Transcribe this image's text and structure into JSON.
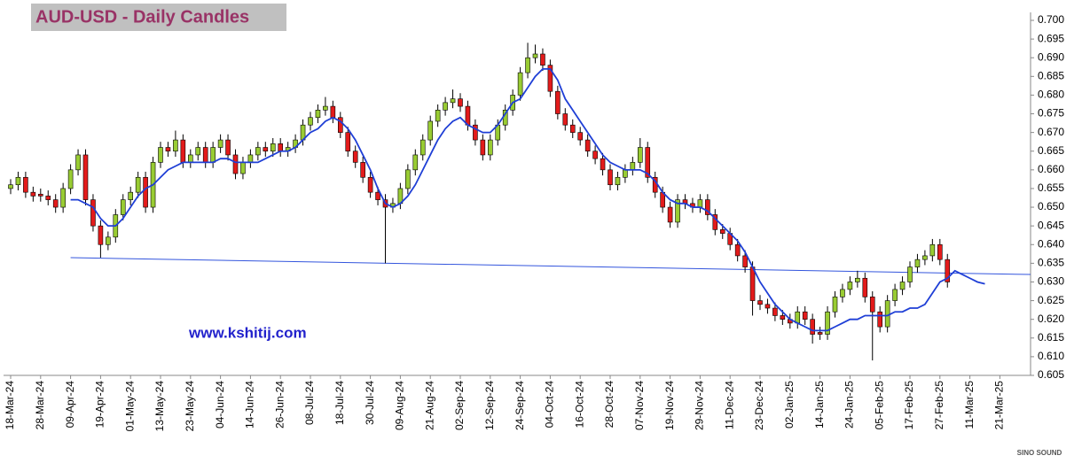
{
  "chart_data": {
    "type": "candlestick",
    "title": "AUD-USD - Daily Candles",
    "watermark": "www.kshitij.com",
    "logo": "SINO SOUND",
    "categories": [
      "18-Mar-24",
      null,
      null,
      null,
      "28-Mar-24",
      null,
      null,
      null,
      "09-Apr-24",
      null,
      null,
      null,
      "19-Apr-24",
      null,
      null,
      null,
      "01-May-24",
      null,
      null,
      null,
      "13-May-24",
      null,
      null,
      null,
      "23-May-24",
      null,
      null,
      null,
      "04-Jun-24",
      null,
      null,
      null,
      "14-Jun-24",
      null,
      null,
      null,
      "26-Jun-24",
      null,
      null,
      null,
      "08-Jul-24",
      null,
      null,
      null,
      "18-Jul-24",
      null,
      null,
      null,
      "30-Jul-24",
      null,
      null,
      null,
      "09-Aug-24",
      null,
      null,
      null,
      "21-Aug-24",
      null,
      null,
      null,
      "02-Sep-24",
      null,
      null,
      null,
      "12-Sep-24",
      null,
      null,
      null,
      "24-Sep-24",
      null,
      null,
      null,
      "04-Oct-24",
      null,
      null,
      null,
      "16-Oct-24",
      null,
      null,
      null,
      "28-Oct-24",
      null,
      null,
      null,
      "07-Nov-24",
      null,
      null,
      null,
      "19-Nov-24",
      null,
      null,
      null,
      "29-Nov-24",
      null,
      null,
      null,
      "11-Dec-24",
      null,
      null,
      null,
      "23-Dec-24",
      null,
      null,
      null,
      "02-Jan-25",
      null,
      null,
      null,
      "14-Jan-25",
      null,
      null,
      null,
      "24-Jan-25",
      null,
      null,
      null,
      "05-Feb-25",
      null,
      null,
      null,
      "17-Feb-25",
      null,
      null,
      null,
      "27-Feb-25",
      null,
      null,
      null,
      "11-Mar-25",
      null,
      null,
      null,
      "21-Mar-25",
      null,
      null,
      null
    ],
    "open": [
      0.655,
      0.656,
      0.658,
      0.654,
      0.6535,
      0.653,
      0.652,
      0.65,
      0.655,
      0.66,
      0.664,
      0.652,
      0.645,
      0.64,
      0.642,
      0.648,
      0.652,
      0.654,
      0.658,
      0.65,
      0.662,
      0.666,
      0.665,
      0.668,
      0.662,
      0.664,
      0.666,
      0.662,
      0.666,
      0.668,
      0.664,
      0.659,
      0.662,
      0.664,
      0.666,
      0.665,
      0.667,
      0.665,
      0.666,
      0.668,
      0.672,
      0.674,
      0.676,
      0.677,
      0.674,
      0.67,
      0.665,
      0.662,
      0.658,
      0.654,
      0.652,
      0.65,
      0.651,
      0.655,
      0.66,
      0.664,
      0.668,
      0.673,
      0.676,
      0.678,
      0.679,
      0.677,
      0.672,
      0.668,
      0.664,
      0.668,
      0.672,
      0.676,
      0.68,
      0.686,
      0.69,
      0.691,
      0.688,
      0.681,
      0.675,
      0.672,
      0.67,
      0.668,
      0.665,
      0.663,
      0.66,
      0.656,
      0.658,
      0.66,
      0.662,
      0.666,
      0.658,
      0.654,
      0.65,
      0.646,
      0.652,
      0.651,
      0.65,
      0.652,
      0.648,
      0.644,
      0.643,
      0.64,
      0.637,
      0.634,
      0.625,
      0.624,
      0.623,
      0.621,
      0.62,
      0.619,
      0.622,
      0.62,
      0.6165,
      0.616,
      0.622,
      0.626,
      0.628,
      0.63,
      0.631,
      0.626,
      0.622,
      0.618,
      0.625,
      0.628,
      0.63,
      0.634,
      0.636,
      0.637,
      0.64,
      0.636,
      null,
      null,
      null,
      null,
      null,
      null,
      null,
      null,
      null,
      null
    ],
    "high": [
      0.6575,
      0.6595,
      0.6595,
      0.6555,
      0.655,
      0.6545,
      0.6535,
      0.6565,
      0.6615,
      0.6655,
      0.6655,
      0.6535,
      0.6465,
      0.6435,
      0.6495,
      0.6535,
      0.6555,
      0.6595,
      0.6595,
      0.6635,
      0.6675,
      0.6675,
      0.6705,
      0.6695,
      0.6655,
      0.6675,
      0.6675,
      0.6675,
      0.6695,
      0.6695,
      0.6655,
      0.6635,
      0.6655,
      0.6675,
      0.6675,
      0.6685,
      0.6685,
      0.6675,
      0.6695,
      0.6735,
      0.6755,
      0.6775,
      0.6795,
      0.6785,
      0.6755,
      0.6715,
      0.6665,
      0.6635,
      0.6595,
      0.6555,
      0.6535,
      0.6525,
      0.6565,
      0.6615,
      0.6655,
      0.6695,
      0.6745,
      0.6775,
      0.6795,
      0.6815,
      0.6805,
      0.6785,
      0.6735,
      0.6695,
      0.6695,
      0.6735,
      0.6775,
      0.6815,
      0.6875,
      0.694,
      0.6935,
      0.6925,
      0.6895,
      0.6825,
      0.6765,
      0.6735,
      0.6715,
      0.6695,
      0.6665,
      0.6645,
      0.6615,
      0.6595,
      0.6615,
      0.6635,
      0.6685,
      0.6675,
      0.6595,
      0.6555,
      0.6515,
      0.6535,
      0.6535,
      0.6525,
      0.6535,
      0.6535,
      0.6495,
      0.6455,
      0.6445,
      0.6415,
      0.6385,
      0.6355,
      0.6265,
      0.6255,
      0.6245,
      0.6225,
      0.6215,
      0.6235,
      0.6235,
      0.6215,
      0.618,
      0.6235,
      0.6275,
      0.6295,
      0.6315,
      0.633,
      0.6325,
      0.6275,
      0.6235,
      0.6265,
      0.6295,
      0.6315,
      0.6355,
      0.6375,
      0.6385,
      0.6415,
      0.6415,
      0.6375,
      null,
      null,
      null,
      null,
      null,
      null,
      null,
      null,
      null,
      null
    ],
    "low": [
      0.6535,
      0.6545,
      0.6525,
      0.6515,
      0.6515,
      0.6505,
      0.6485,
      0.6485,
      0.6535,
      0.6585,
      0.6505,
      0.6435,
      0.6365,
      0.6385,
      0.6405,
      0.6465,
      0.6505,
      0.6525,
      0.6485,
      0.6485,
      0.6605,
      0.6635,
      0.6635,
      0.6605,
      0.6605,
      0.6625,
      0.6605,
      0.6605,
      0.6645,
      0.6625,
      0.6575,
      0.6575,
      0.6605,
      0.6625,
      0.6635,
      0.6635,
      0.6635,
      0.6635,
      0.6645,
      0.6665,
      0.6705,
      0.6725,
      0.6745,
      0.6725,
      0.6685,
      0.6635,
      0.6605,
      0.6565,
      0.6525,
      0.6505,
      0.635,
      0.6485,
      0.6495,
      0.6535,
      0.6585,
      0.6625,
      0.6665,
      0.6715,
      0.6745,
      0.6765,
      0.6755,
      0.6705,
      0.6665,
      0.6625,
      0.6625,
      0.6665,
      0.6705,
      0.6745,
      0.6785,
      0.6845,
      0.6885,
      0.6865,
      0.6795,
      0.6735,
      0.6705,
      0.6685,
      0.6665,
      0.6635,
      0.6615,
      0.6585,
      0.6545,
      0.6545,
      0.6565,
      0.6585,
      0.6605,
      0.6565,
      0.6525,
      0.6485,
      0.6445,
      0.6445,
      0.6495,
      0.6485,
      0.6485,
      0.6465,
      0.6425,
      0.6415,
      0.6385,
      0.6355,
      0.6325,
      0.621,
      0.6225,
      0.6215,
      0.6195,
      0.6185,
      0.6175,
      0.6175,
      0.6185,
      0.6135,
      0.6145,
      0.6145,
      0.6205,
      0.6245,
      0.6265,
      0.6285,
      0.6245,
      0.609,
      0.6165,
      0.6165,
      0.6235,
      0.6265,
      0.6285,
      0.6325,
      0.6345,
      0.6355,
      0.6345,
      0.6285,
      null,
      null,
      null,
      null,
      null,
      null,
      null,
      null,
      null,
      null
    ],
    "close": [
      0.656,
      0.658,
      0.654,
      0.653,
      0.653,
      0.652,
      0.65,
      0.655,
      0.66,
      0.664,
      0.652,
      0.645,
      0.64,
      0.642,
      0.648,
      0.652,
      0.654,
      0.658,
      0.65,
      0.662,
      0.666,
      0.665,
      0.668,
      0.662,
      0.664,
      0.666,
      0.662,
      0.666,
      0.668,
      0.664,
      0.659,
      0.662,
      0.664,
      0.666,
      0.665,
      0.667,
      0.665,
      0.666,
      0.668,
      0.672,
      0.674,
      0.676,
      0.677,
      0.674,
      0.67,
      0.665,
      0.662,
      0.658,
      0.654,
      0.652,
      0.65,
      0.651,
      0.655,
      0.66,
      0.664,
      0.668,
      0.673,
      0.676,
      0.678,
      0.679,
      0.677,
      0.672,
      0.668,
      0.664,
      0.668,
      0.672,
      0.676,
      0.68,
      0.686,
      0.69,
      0.691,
      0.688,
      0.681,
      0.675,
      0.672,
      0.67,
      0.668,
      0.665,
      0.663,
      0.66,
      0.656,
      0.658,
      0.66,
      0.662,
      0.666,
      0.658,
      0.654,
      0.65,
      0.646,
      0.652,
      0.651,
      0.65,
      0.652,
      0.648,
      0.644,
      0.643,
      0.64,
      0.637,
      0.634,
      0.625,
      0.624,
      0.623,
      0.621,
      0.62,
      0.619,
      0.622,
      0.62,
      0.616,
      0.616,
      0.622,
      0.626,
      0.628,
      0.63,
      0.631,
      0.626,
      0.622,
      0.618,
      0.625,
      0.628,
      0.63,
      0.634,
      0.636,
      0.637,
      0.64,
      0.636,
      0.63,
      null,
      null,
      null,
      null,
      null,
      null,
      null,
      null,
      null,
      null
    ],
    "up_color": "#99cc33",
    "down_color": "#e31b1b",
    "moving_average": {
      "color": "#1f3fd6",
      "values": [
        null,
        null,
        null,
        null,
        null,
        null,
        null,
        null,
        0.652,
        0.652,
        0.651,
        0.65,
        0.647,
        0.645,
        0.645,
        0.647,
        0.65,
        0.653,
        0.655,
        0.656,
        0.658,
        0.66,
        0.661,
        0.662,
        0.662,
        0.662,
        0.662,
        0.662,
        0.663,
        0.663,
        0.662,
        0.662,
        0.662,
        0.662,
        0.663,
        0.664,
        0.665,
        0.665,
        0.666,
        0.668,
        0.67,
        0.671,
        0.673,
        0.674,
        0.673,
        0.671,
        0.668,
        0.664,
        0.66,
        0.655,
        0.651,
        0.65,
        0.651,
        0.653,
        0.656,
        0.66,
        0.664,
        0.668,
        0.671,
        0.673,
        0.674,
        0.672,
        0.671,
        0.67,
        0.67,
        0.672,
        0.675,
        0.678,
        0.679,
        0.682,
        0.685,
        0.687,
        0.687,
        0.684,
        0.679,
        0.676,
        0.673,
        0.67,
        0.667,
        0.664,
        0.662,
        0.661,
        0.66,
        0.66,
        0.66,
        0.659,
        0.657,
        0.654,
        0.652,
        0.651,
        0.651,
        0.65,
        0.65,
        0.649,
        0.647,
        0.645,
        0.643,
        0.641,
        0.638,
        0.634,
        0.63,
        0.627,
        0.624,
        0.622,
        0.62,
        0.619,
        0.618,
        0.617,
        0.617,
        0.617,
        0.618,
        0.619,
        0.62,
        0.62,
        0.621,
        0.621,
        0.621,
        0.621,
        0.622,
        0.622,
        0.623,
        0.623,
        0.624,
        0.627,
        0.63,
        0.631,
        0.633,
        0.632,
        0.631,
        0.63,
        0.6295,
        null,
        null,
        null,
        null,
        null
      ]
    },
    "trendline": {
      "color": "#3355dd",
      "values": [
        0.6365,
        0.632
      ]
    },
    "ylim": [
      0.605,
      0.7
    ],
    "yticks": [
      0.605,
      {
        "value": 0.61,
        "label": "0.610"
      },
      0.615,
      {
        "value": 0.62,
        "label": "0.620"
      },
      0.625,
      {
        "value": 0.63,
        "label": "0.630"
      },
      0.635,
      {
        "value": 0.64,
        "label": "0.640"
      },
      0.645,
      {
        "value": 0.65,
        "label": "0.650"
      },
      0.655,
      {
        "value": 0.66,
        "label": "0.660"
      },
      0.665,
      {
        "value": 0.67,
        "label": "0.670"
      },
      0.675,
      {
        "value": 0.68,
        "label": "0.680"
      },
      0.685,
      {
        "value": 0.69,
        "label": "0.690"
      },
      0.695,
      {
        "value": 0.7,
        "label": "0.700"
      }
    ]
  }
}
